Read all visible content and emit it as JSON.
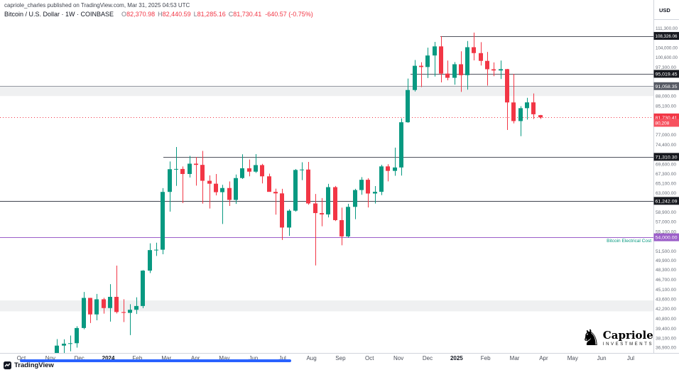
{
  "attribution": "capriole_charles published on TradingView.com, Mar 31, 2025 04:53 UTC",
  "symbol_bar": {
    "title": "Bitcoin / U.S. Dollar · 1W · COINBASE",
    "ohlc": {
      "o_label": "O",
      "o": "82,370.98",
      "h_label": "H",
      "h": "82,440.59",
      "l_label": "L",
      "l": "81,285.16",
      "c_label": "C",
      "c": "81,730.41",
      "change": "-640.57 (-0.75%)"
    }
  },
  "price_axis": {
    "currency_label": "USD",
    "ticks": [
      36900,
      38100,
      39400,
      40800,
      42200,
      43600,
      45100,
      46700,
      48300,
      49900,
      51500,
      53300,
      55100,
      57000,
      58900,
      60900,
      63000,
      65100,
      67300,
      69600,
      72000,
      74400,
      77000,
      79600,
      82300,
      85100,
      88000,
      91000,
      94100,
      97300,
      100600,
      104000,
      107600,
      111300
    ]
  },
  "time_axis": {
    "labels": [
      {
        "text": "Oct"
      },
      {
        "text": "Nov"
      },
      {
        "text": "Dec"
      },
      {
        "text": "2024",
        "bold": true
      },
      {
        "text": "Feb"
      },
      {
        "text": "Mar"
      },
      {
        "text": "Apr"
      },
      {
        "text": "May"
      },
      {
        "text": "Jun"
      },
      {
        "text": "Jul"
      },
      {
        "text": "Aug"
      },
      {
        "text": "Sep"
      },
      {
        "text": "Oct"
      },
      {
        "text": "Nov"
      },
      {
        "text": "Dec"
      },
      {
        "text": "2025",
        "bold": true
      },
      {
        "text": "Feb"
      },
      {
        "text": "Mar"
      },
      {
        "text": "Apr"
      },
      {
        "text": "May"
      },
      {
        "text": "Jun"
      },
      {
        "text": "Jul"
      }
    ]
  },
  "annotations": {
    "electrical_cost_label": "Bitcoin Electrical Cost",
    "electrical_cost_price": 54000
  },
  "footer": {
    "tradingview_label": "TradingView",
    "scrollbar_color": "#2962ff"
  },
  "logo": {
    "name": "Capriole",
    "subtitle": "INVESTMENTS"
  },
  "chart_data": {
    "type": "candlestick",
    "title": "Bitcoin / U.S. Dollar",
    "interval": "1W",
    "exchange": "COINBASE",
    "x_start_week": "2023-10-30",
    "y_scale": "log",
    "ylim": [
      36200,
      114500
    ],
    "up_color": "#089981",
    "down_color": "#f23645",
    "candles": [
      [
        34530,
        35280,
        34080,
        35010
      ],
      [
        35010,
        37980,
        34750,
        37130
      ],
      [
        37130,
        37950,
        35550,
        37380
      ],
      [
        37380,
        38450,
        36410,
        37440
      ],
      [
        37440,
        39700,
        36870,
        39460
      ],
      [
        39460,
        44700,
        39290,
        43790
      ],
      [
        43790,
        43800,
        40150,
        41360
      ],
      [
        41360,
        44390,
        40530,
        43580
      ],
      [
        43580,
        43800,
        41470,
        42280
      ],
      [
        42280,
        45920,
        40340,
        43950
      ],
      [
        43950,
        48970,
        41500,
        41700
      ],
      [
        41700,
        43580,
        40280,
        41580
      ],
      [
        41580,
        42840,
        38500,
        42030
      ],
      [
        42030,
        43880,
        41420,
        42580
      ],
      [
        42580,
        48200,
        42270,
        48120
      ],
      [
        48120,
        52890,
        47710,
        51660
      ],
      [
        51660,
        52990,
        50630,
        51730
      ],
      [
        51730,
        64000,
        50930,
        63170
      ],
      [
        63170,
        70180,
        59000,
        68330
      ],
      [
        68330,
        73790,
        64500,
        68390
      ],
      [
        68390,
        68990,
        60770,
        67210
      ],
      [
        67210,
        71550,
        66380,
        69650
      ],
      [
        69650,
        71290,
        64550,
        69360
      ],
      [
        69360,
        72800,
        60660,
        65650
      ],
      [
        65650,
        66880,
        59640,
        64990
      ],
      [
        64990,
        67200,
        62420,
        63110
      ],
      [
        63110,
        64730,
        56550,
        64030
      ],
      [
        64030,
        65500,
        60170,
        61450
      ],
      [
        61450,
        67080,
        60600,
        66270
      ],
      [
        66270,
        71950,
        66060,
        68550
      ],
      [
        68550,
        70650,
        66670,
        67750
      ],
      [
        67750,
        71990,
        67450,
        69310
      ],
      [
        69310,
        69590,
        65060,
        66670
      ],
      [
        66670,
        67300,
        63380,
        63180
      ],
      [
        63180,
        63890,
        58400,
        62850
      ],
      [
        62850,
        63840,
        53500,
        55850
      ],
      [
        55850,
        59480,
        54260,
        59200
      ],
      [
        59200,
        68370,
        59000,
        68150
      ],
      [
        68150,
        69990,
        65800,
        68250
      ],
      [
        68250,
        70080,
        60430,
        60700
      ],
      [
        60700,
        62720,
        49000,
        58710
      ],
      [
        58710,
        61840,
        56100,
        58440
      ],
      [
        58440,
        64950,
        57850,
        64220
      ],
      [
        64220,
        64480,
        57110,
        57300
      ],
      [
        57300,
        59820,
        52530,
        54160
      ],
      [
        54160,
        60620,
        53950,
        59990
      ],
      [
        59990,
        63850,
        57490,
        63580
      ],
      [
        63580,
        66480,
        62550,
        65880
      ],
      [
        65880,
        66250,
        59860,
        62820
      ],
      [
        62820,
        64460,
        60670,
        63190
      ],
      [
        63190,
        69380,
        62480,
        69000
      ],
      [
        69000,
        69520,
        65520,
        67930
      ],
      [
        67930,
        73620,
        66800,
        68740
      ],
      [
        68740,
        81450,
        66830,
        80370
      ],
      [
        80370,
        93480,
        80220,
        89850
      ],
      [
        89850,
        99660,
        89380,
        97700
      ],
      [
        97700,
        98900,
        90790,
        97280
      ],
      [
        97280,
        104000,
        93640,
        101240
      ],
      [
        101240,
        106100,
        94150,
        104480
      ],
      [
        104480,
        108260,
        92240,
        95100
      ],
      [
        95100,
        99500,
        92900,
        93720
      ],
      [
        93720,
        98970,
        91530,
        98220
      ],
      [
        98220,
        102720,
        89260,
        94570
      ],
      [
        94570,
        106420,
        89950,
        104180
      ],
      [
        104180,
        109590,
        99550,
        102080
      ],
      [
        102080,
        106000,
        97780,
        99370
      ],
      [
        99370,
        102500,
        91230,
        96540
      ],
      [
        96540,
        98850,
        94250,
        96120
      ],
      [
        96120,
        99480,
        93330,
        96580
      ],
      [
        96580,
        96670,
        78260,
        86070
      ],
      [
        86070,
        95000,
        80050,
        80700
      ],
      [
        80700,
        84970,
        76600,
        84380
      ],
      [
        84380,
        87450,
        81130,
        86090
      ],
      [
        86090,
        88770,
        81290,
        82620
      ],
      [
        82370.98,
        82440.59,
        81285.16,
        81730.41
      ]
    ],
    "levels": [
      {
        "price": 108326.06,
        "label": "108,326.06",
        "line": true,
        "x_start": 620,
        "line_color": "#50535e",
        "width": 1,
        "bg": "#16181e"
      },
      {
        "price": 95019.45,
        "label": "95,019.45",
        "line": true,
        "x_start": 578,
        "line_color": "#50535e",
        "width": 1,
        "bg": "#16181e"
      },
      {
        "price": 91058.35,
        "label": "91,058.35",
        "line": true,
        "x_start": 0,
        "line_color": "#9598a1",
        "width": 1,
        "bg": "#565a64"
      },
      {
        "price": 81730.41,
        "label": "81,730.41",
        "line": true,
        "x_start": 0,
        "line_color": "#f23645",
        "width": 1,
        "dash": "1,3",
        "bg": "#f23645"
      },
      {
        "price": 80208,
        "label": "80,208",
        "line": false,
        "bg": "#f7525f"
      },
      {
        "price": 71310.3,
        "label": "71,310.30",
        "line": true,
        "x_start": 230,
        "line_color": "#50535e",
        "width": 1,
        "bg": "#16181e"
      },
      {
        "price": 61242.09,
        "label": "61,242.09",
        "line": true,
        "x_start": 0,
        "line_color": "#3f434e",
        "width": 1.2,
        "bg": "#16181e"
      },
      {
        "price": 54000,
        "label": "54,000.00",
        "line": true,
        "x_start": 0,
        "line_color": "#9c5fc9",
        "width": 1.4,
        "bg": "#9c5fc9"
      }
    ],
    "bands": [
      {
        "from": 88000,
        "to": 91058,
        "color": "rgba(149,152,161,0.15)"
      },
      {
        "from": 41800,
        "to": 43400,
        "color": "rgba(149,152,161,0.15)"
      }
    ]
  }
}
